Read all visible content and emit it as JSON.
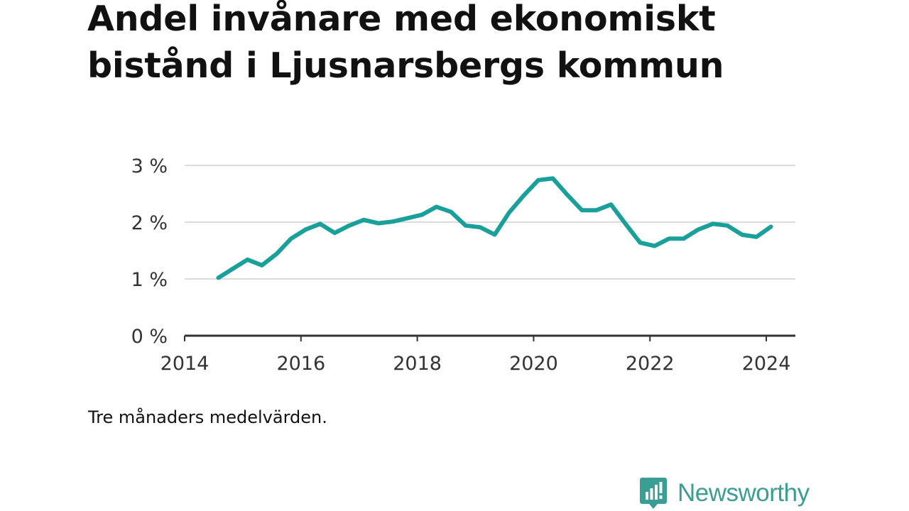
{
  "title": "Andel invånare med ekonomiskt bistånd i Ljusnarsbergs kommun",
  "note": "Tre månaders medelvärden.",
  "brand": {
    "name": "Newsworthy",
    "color": "#3a9e94",
    "icon": "newsworthy-logo-icon"
  },
  "colors": {
    "line": "#1aa09a",
    "grid": "#dcdcdc",
    "axis": "#333333",
    "text": "#333333"
  },
  "chart_data": {
    "type": "line",
    "title": "Andel invånare med ekonomiskt bistånd i Ljusnarsbergs kommun",
    "xlabel": "",
    "ylabel": "",
    "xlim": [
      2014,
      2024.5
    ],
    "ylim": [
      0,
      3
    ],
    "x_ticks": [
      2014,
      2016,
      2018,
      2020,
      2022,
      2024
    ],
    "x_tick_labels": [
      "2014",
      "2016",
      "2018",
      "2020",
      "2022",
      "2024"
    ],
    "y_ticks": [
      0,
      1,
      2,
      3
    ],
    "y_tick_labels": [
      "0 %",
      "1 %",
      "2 %",
      "3 %"
    ],
    "grid": true,
    "series": [
      {
        "name": "",
        "x": [
          2014.58,
          2014.83,
          2015.08,
          2015.33,
          2015.58,
          2015.83,
          2016.08,
          2016.33,
          2016.58,
          2016.83,
          2017.08,
          2017.33,
          2017.58,
          2017.83,
          2018.08,
          2018.33,
          2018.58,
          2018.83,
          2019.08,
          2019.33,
          2019.58,
          2019.83,
          2020.08,
          2020.33,
          2020.58,
          2020.83,
          2021.08,
          2021.33,
          2021.58,
          2021.83,
          2022.08,
          2022.33,
          2022.58,
          2022.83,
          2023.08,
          2023.33,
          2023.58,
          2023.83,
          2024.08
        ],
        "y": [
          1.02,
          1.18,
          1.34,
          1.24,
          1.44,
          1.71,
          1.87,
          1.97,
          1.81,
          1.94,
          2.04,
          1.98,
          2.01,
          2.07,
          2.13,
          2.27,
          2.18,
          1.94,
          1.91,
          1.78,
          2.17,
          2.47,
          2.74,
          2.77,
          2.48,
          2.21,
          2.21,
          2.31,
          1.97,
          1.64,
          1.58,
          1.71,
          1.71,
          1.87,
          1.97,
          1.94,
          1.78,
          1.74,
          1.92
        ]
      }
    ]
  }
}
